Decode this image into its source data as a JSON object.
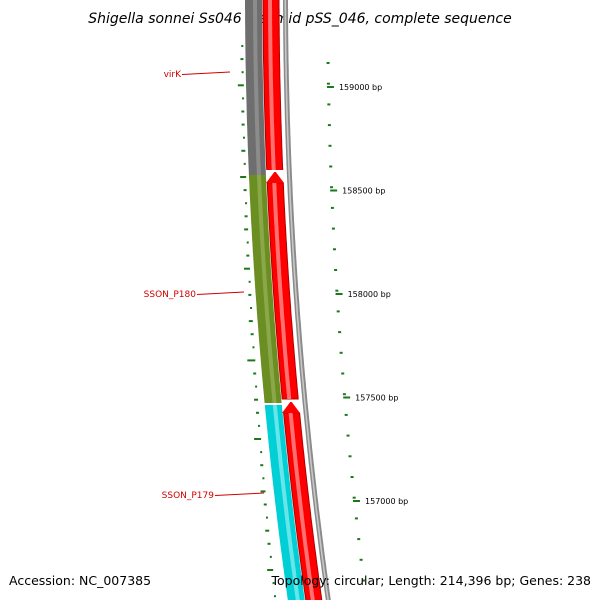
{
  "title": "Shigella sonnei Ss046 plasmid pSS_046, complete sequence",
  "footer": {
    "accession": "Accession: NC_007385",
    "topology": "Topology: circular; Length: 214,396 bp; Genes: 238"
  },
  "scale_ticks": [
    {
      "bp": 159000,
      "label": "159000 bp"
    },
    {
      "bp": 158500,
      "label": "158500 bp"
    },
    {
      "bp": 158000,
      "label": "158000 bp"
    },
    {
      "bp": 157500,
      "label": "157500 bp"
    },
    {
      "bp": 157000,
      "label": "157000 bp"
    }
  ],
  "gene_labels": [
    {
      "name": "virK"
    },
    {
      "name": "SSON_P180"
    },
    {
      "name": "SSON_P179"
    }
  ],
  "colors": {
    "gray_gene": "#6e6e6e",
    "olive_gene": "#6b8e23",
    "cyan_gene": "#00cfd6",
    "red_strand": "#ff0000",
    "backbone": "#8a8a8a",
    "gc_marks": "#1a7a1a",
    "label_red": "#d00000"
  }
}
